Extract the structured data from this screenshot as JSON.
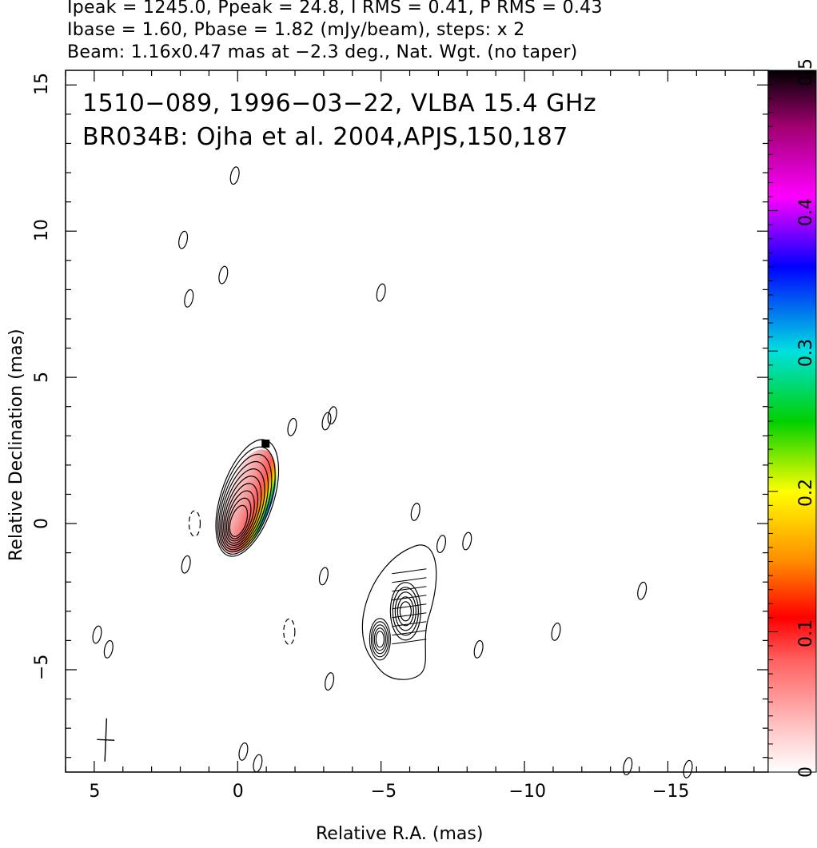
{
  "header": {
    "line1": "Ipeak = 1245.0, Ppeak = 24.8, I RMS = 0.41, P RMS = 0.43",
    "line2": "Ibase = 1.60, Pbase = 1.82 (mJy/beam), steps: x 2",
    "line3": "Beam: 1.16x0.47 mas at −2.3 deg., Nat. Wgt. (no taper)"
  },
  "annotation": {
    "line1": "1510−089, 1996−03−22, VLBA 15.4 GHz",
    "line2": "BR034B: Ojha et al. 2004,APJS,150,187"
  },
  "chart_data": {
    "type": "heatmap",
    "title": "",
    "xlabel": "Relative R.A. (mas)",
    "ylabel": "Relative Declination (mas)",
    "xlim": [
      6.0,
      -18.5
    ],
    "ylim": [
      -8.5,
      15.5
    ],
    "x_ticks": [
      5,
      0,
      -5,
      -10,
      -15
    ],
    "x_tick_labels": [
      "5",
      "0",
      "−5",
      "−10",
      "−15"
    ],
    "y_ticks": [
      15,
      10,
      5,
      0,
      -5
    ],
    "y_tick_labels": [
      "15",
      "10",
      "5",
      "0",
      "−5"
    ],
    "colorbar": {
      "min": 0,
      "max": 0.5,
      "ticks": [
        0,
        0.1,
        0.2,
        0.3,
        0.4,
        0.5
      ],
      "tick_labels": [
        "0",
        "0.1",
        "0.2",
        "0.3",
        "0.4",
        "0.5"
      ]
    },
    "core": {
      "ra": 0.0,
      "dec": 0.0,
      "levels": 10
    },
    "jet_component": {
      "ra": -5.8,
      "dec": -3.0,
      "levels": 5
    },
    "small_contours": [
      {
        "ra": 0.1,
        "dec": 11.9
      },
      {
        "ra": 1.9,
        "dec": 9.7
      },
      {
        "ra": 0.5,
        "dec": 8.5
      },
      {
        "ra": 1.7,
        "dec": 7.7
      },
      {
        "ra": -5.0,
        "dec": 7.9
      },
      {
        "ra": -3.1,
        "dec": 3.5
      },
      {
        "ra": -3.3,
        "dec": 3.7
      },
      {
        "ra": -1.9,
        "dec": 3.3
      },
      {
        "ra": -6.2,
        "dec": 0.4
      },
      {
        "ra": -7.1,
        "dec": -0.7
      },
      {
        "ra": -8.0,
        "dec": -0.6
      },
      {
        "ra": 1.8,
        "dec": -1.4
      },
      {
        "ra": -3.0,
        "dec": -1.8
      },
      {
        "ra": -11.1,
        "dec": -3.7
      },
      {
        "ra": -8.4,
        "dec": -4.3
      },
      {
        "ra": 4.9,
        "dec": -3.8
      },
      {
        "ra": 4.5,
        "dec": -4.3
      },
      {
        "ra": -3.2,
        "dec": -5.4
      },
      {
        "ra": -0.2,
        "dec": -7.8
      },
      {
        "ra": -0.7,
        "dec": -8.2
      },
      {
        "ra": -13.6,
        "dec": -8.3
      },
      {
        "ra": -15.7,
        "dec": -8.4
      },
      {
        "ra": -14.1,
        "dec": -2.3
      }
    ],
    "negative_contours": [
      {
        "ra": 1.5,
        "dec": 0.0
      },
      {
        "ra": -1.8,
        "dec": -3.7
      }
    ],
    "beam": {
      "major_mas": 1.16,
      "minor_mas": 0.47,
      "pa_deg": -2.3,
      "ra": 4.6,
      "dec": -7.4
    }
  }
}
